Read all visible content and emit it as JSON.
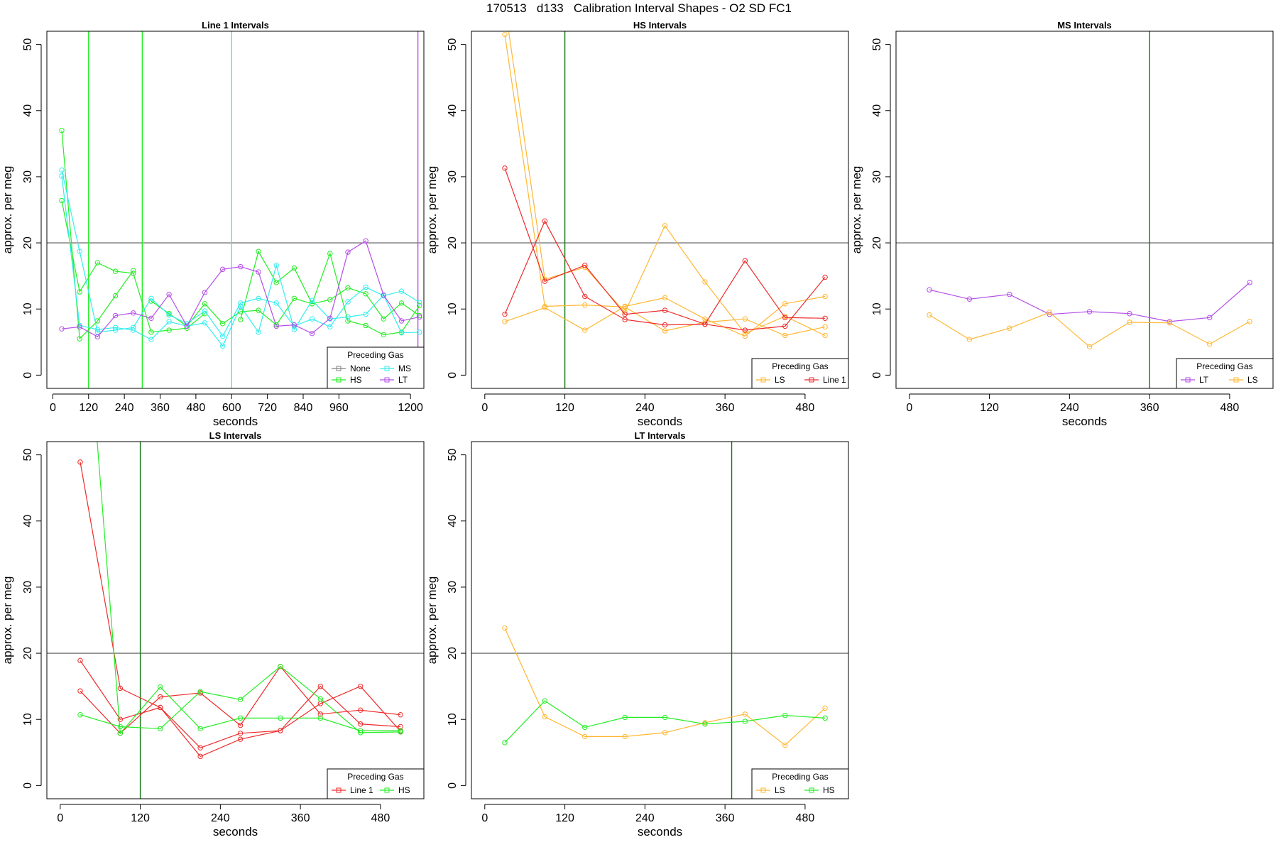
{
  "main_title": "170513   d133   Calibration Interval Shapes - O2 SD FC1",
  "colors": {
    "None": "#808080",
    "HS": "#22ee22",
    "MS": "#33eeee",
    "LT": "#b44ee8",
    "LS": "#ffb733",
    "Line 1": "#ee2a2a",
    "vline": "#117711",
    "hline": "#555555"
  },
  "chart_data": [
    {
      "type": "line",
      "title": "Line 1 Intervals",
      "xlabel": "seconds",
      "ylabel": "approx. per meg",
      "xlim": [
        -20,
        1245
      ],
      "ylim": [
        -2,
        52
      ],
      "xticks": [
        0,
        120,
        240,
        360,
        480,
        600,
        720,
        840,
        960,
        1200
      ],
      "yticks": [
        0,
        10,
        20,
        30,
        40,
        50
      ],
      "hline": 20,
      "vlines": [
        {
          "x": 120,
          "color": "HS"
        },
        {
          "x": 300,
          "color": "HS"
        },
        {
          "x": 600,
          "color": "MS"
        },
        {
          "x": 1225,
          "color": "LT"
        }
      ],
      "legend": {
        "title": "Preceding Gas",
        "position": "bottom-right",
        "columns": 2,
        "items": [
          "None",
          "MS",
          "HS",
          "LT"
        ]
      },
      "series": [
        {
          "name": "HS",
          "x": [
            30,
            90,
            150,
            210,
            270
          ],
          "y": [
            37,
            5.5,
            8.2,
            12,
            15.8
          ]
        },
        {
          "name": "HS",
          "x": [
            30,
            90,
            150,
            210,
            270,
            330,
            390,
            450,
            510
          ],
          "y": [
            26.4,
            12.6,
            17,
            15.7,
            15.4,
            6.5,
            6.8,
            7.1,
            9.3
          ]
        },
        {
          "name": "HS",
          "x": [
            330,
            390,
            450,
            510,
            570,
            630,
            690,
            750,
            810,
            870,
            930,
            990,
            1050,
            1110,
            1170,
            1230
          ],
          "y": [
            11.2,
            9.3,
            7.4,
            10.8,
            7.8,
            9.6,
            9.8,
            7.6,
            11.6,
            10.8,
            18.4,
            8.2,
            7.5,
            6.1,
            6.5,
            10.5
          ]
        },
        {
          "name": "HS",
          "x": [
            630,
            690,
            750,
            810,
            870,
            930,
            990,
            1050,
            1110,
            1170,
            1230
          ],
          "y": [
            8.4,
            18.7,
            14,
            16.2,
            10.8,
            11.4,
            13.2,
            12.3,
            8.5,
            10.9,
            9
          ]
        },
        {
          "name": "MS",
          "x": [
            30,
            90,
            150,
            210,
            270,
            330,
            390,
            450,
            510,
            570,
            630,
            690,
            750,
            810,
            870,
            930,
            990,
            1050,
            1110,
            1170,
            1230
          ],
          "y": [
            31,
            18.7,
            6.5,
            6.8,
            7.2,
            11.6,
            9.1,
            7.8,
            9.7,
            5.9,
            10.9,
            11.6,
            10.9,
            7.4,
            8.5,
            7.3,
            11.1,
            13.3,
            12,
            12.7,
            11
          ]
        },
        {
          "name": "MS",
          "x": [
            30,
            90,
            150,
            210,
            270,
            330,
            390,
            450,
            510,
            570,
            630,
            690,
            750,
            810,
            870,
            930,
            990,
            1050,
            1110,
            1170,
            1230
          ],
          "y": [
            30.1,
            7.5,
            6.9,
            7.2,
            6.8,
            5.4,
            8.1,
            7.4,
            7.9,
            4.4,
            10.4,
            6.5,
            16.6,
            6.9,
            11.3,
            8.5,
            8.8,
            9.2,
            12.1,
            6.4,
            6.5
          ]
        },
        {
          "name": "LT",
          "x": [
            30,
            90,
            150,
            210,
            270,
            330,
            390,
            450,
            510,
            570,
            630,
            690,
            750,
            810,
            870,
            930,
            990,
            1050,
            1110,
            1170,
            1230
          ],
          "y": [
            7,
            7.3,
            5.8,
            9,
            9.4,
            8.6,
            12.2,
            7.4,
            12.5,
            16,
            16.4,
            15.6,
            7.4,
            7.6,
            6.3,
            8.6,
            18.6,
            20.3,
            12.1,
            8.2,
            8.8
          ]
        }
      ]
    },
    {
      "type": "line",
      "title": "HS Intervals",
      "xlabel": "seconds",
      "ylabel": "approx. per meg",
      "xlim": [
        -20,
        545
      ],
      "ylim": [
        -2,
        52
      ],
      "xticks": [
        0,
        120,
        240,
        360,
        480
      ],
      "yticks": [
        0,
        10,
        20,
        30,
        40,
        50
      ],
      "hline": 20,
      "vlines": [
        {
          "x": 120,
          "color": "vline"
        }
      ],
      "legend": {
        "title": "Preceding Gas",
        "position": "bottom-right",
        "columns": 2,
        "items": [
          "LS",
          "Line 1"
        ]
      },
      "series": [
        {
          "name": "LS",
          "x": [
            30,
            90,
            150,
            210,
            270,
            330,
            390,
            450,
            510
          ],
          "y": [
            51.5,
            10.4,
            10.6,
            10.3,
            6.7,
            8,
            8.5,
            6,
            7.3
          ]
        },
        {
          "name": "LS",
          "x": [
            30,
            90,
            150,
            210,
            270,
            330,
            390,
            450,
            510
          ],
          "y": [
            8.1,
            10.2,
            6.8,
            10.4,
            11.7,
            8.5,
            5.9,
            10.8,
            11.9
          ]
        },
        {
          "name": "LS",
          "x": [
            35,
            90,
            150,
            210,
            270,
            330,
            390,
            450,
            510
          ],
          "y": [
            52.5,
            14.5,
            16.3,
            9.5,
            22.6,
            14.1,
            6.3,
            8.9,
            6
          ]
        },
        {
          "name": "Line 1",
          "x": [
            30,
            90,
            150,
            210,
            270,
            330,
            390,
            450,
            510
          ],
          "y": [
            31.3,
            14.2,
            16.6,
            9.2,
            9.8,
            7.7,
            6.8,
            7.4,
            14.8
          ]
        },
        {
          "name": "Line 1",
          "x": [
            30,
            90,
            150,
            210,
            270,
            330,
            390,
            450,
            510
          ],
          "y": [
            9.2,
            23.3,
            11.9,
            8.4,
            7.6,
            7.7,
            17.3,
            8.7,
            8.6
          ]
        }
      ]
    },
    {
      "type": "line",
      "title": "MS Intervals",
      "xlabel": "seconds",
      "ylabel": "approx. per meg",
      "xlim": [
        -20,
        545
      ],
      "ylim": [
        -2,
        52
      ],
      "xticks": [
        0,
        120,
        240,
        360,
        480
      ],
      "yticks": [
        0,
        10,
        20,
        30,
        40,
        50
      ],
      "hline": 20,
      "vlines": [
        {
          "x": 360,
          "color": "vline"
        }
      ],
      "legend": {
        "title": "Preceding Gas",
        "position": "bottom-right",
        "columns": 2,
        "items": [
          "LT",
          "LS"
        ]
      },
      "series": [
        {
          "name": "LT",
          "x": [
            30,
            90,
            150,
            210,
            270,
            330,
            390,
            450,
            510
          ],
          "y": [
            12.9,
            11.5,
            12.2,
            9.2,
            9.6,
            9.3,
            8.1,
            8.7,
            14
          ]
        },
        {
          "name": "LS",
          "x": [
            30,
            90,
            150,
            210,
            270,
            330,
            390,
            450,
            510
          ],
          "y": [
            9.1,
            5.4,
            7.1,
            9.5,
            4.3,
            8,
            7.9,
            4.7,
            8.1
          ]
        }
      ]
    },
    {
      "type": "line",
      "title": "LS Intervals",
      "xlabel": "seconds",
      "ylabel": "approx. per meg",
      "xlim": [
        -20,
        545
      ],
      "ylim": [
        -2,
        52
      ],
      "xticks": [
        0,
        120,
        240,
        360,
        480
      ],
      "yticks": [
        0,
        10,
        20,
        30,
        40,
        50
      ],
      "hline": 20,
      "vlines": [
        {
          "x": 120,
          "color": "vline"
        }
      ],
      "legend": {
        "title": "Preceding Gas",
        "position": "bottom-right",
        "columns": 2,
        "items": [
          "Line 1",
          "HS"
        ]
      },
      "series": [
        {
          "name": "Line 1",
          "x": [
            30,
            90,
            150,
            210,
            270,
            330,
            390,
            450,
            510
          ],
          "y": [
            48.9,
            14.7,
            11.8,
            5.7,
            7.9,
            8.3,
            15,
            9.3,
            8.9
          ]
        },
        {
          "name": "Line 1",
          "x": [
            30,
            90,
            150,
            210,
            270,
            330,
            390,
            450,
            510
          ],
          "y": [
            18.9,
            10,
            11.8,
            4.4,
            7,
            8.3,
            12.4,
            15,
            8.2
          ]
        },
        {
          "name": "Line 1",
          "x": [
            30,
            90,
            150,
            210,
            270,
            330,
            390,
            450,
            510
          ],
          "y": [
            14.3,
            7.9,
            13.4,
            14,
            9.1,
            18,
            10.8,
            11.4,
            10.7
          ]
        },
        {
          "name": "HS",
          "x": [
            55,
            90,
            150,
            210,
            270,
            330,
            390,
            450,
            510
          ],
          "y": [
            52.5,
            7.9,
            14.9,
            8.6,
            10.2,
            10.2,
            10.2,
            8.3,
            8.3
          ]
        },
        {
          "name": "HS",
          "x": [
            30,
            90,
            150,
            210,
            270,
            330,
            390,
            450,
            510
          ],
          "y": [
            10.7,
            8.9,
            8.6,
            14.2,
            13,
            18,
            13.1,
            8,
            8.1
          ]
        }
      ]
    },
    {
      "type": "line",
      "title": "LT Intervals",
      "xlabel": "seconds",
      "ylabel": "approx. per meg",
      "xlim": [
        -20,
        545
      ],
      "ylim": [
        -2,
        52
      ],
      "xticks": [
        0,
        120,
        240,
        360,
        480
      ],
      "yticks": [
        0,
        10,
        20,
        30,
        40,
        50
      ],
      "hline": 20,
      "vlines": [
        {
          "x": 370,
          "color": "vline"
        }
      ],
      "legend": {
        "title": "Preceding Gas",
        "position": "bottom-right",
        "columns": 2,
        "items": [
          "LS",
          "HS"
        ]
      },
      "series": [
        {
          "name": "LS",
          "x": [
            30,
            90,
            150,
            210,
            270,
            330,
            390,
            450,
            510
          ],
          "y": [
            23.8,
            10.4,
            7.4,
            7.4,
            8,
            9.5,
            10.8,
            6.1,
            11.7
          ]
        },
        {
          "name": "HS",
          "x": [
            30,
            90,
            150,
            210,
            270,
            330,
            390,
            450,
            510
          ],
          "y": [
            6.5,
            12.8,
            8.8,
            10.3,
            10.3,
            9.3,
            9.7,
            10.6,
            10.2
          ]
        }
      ]
    }
  ]
}
